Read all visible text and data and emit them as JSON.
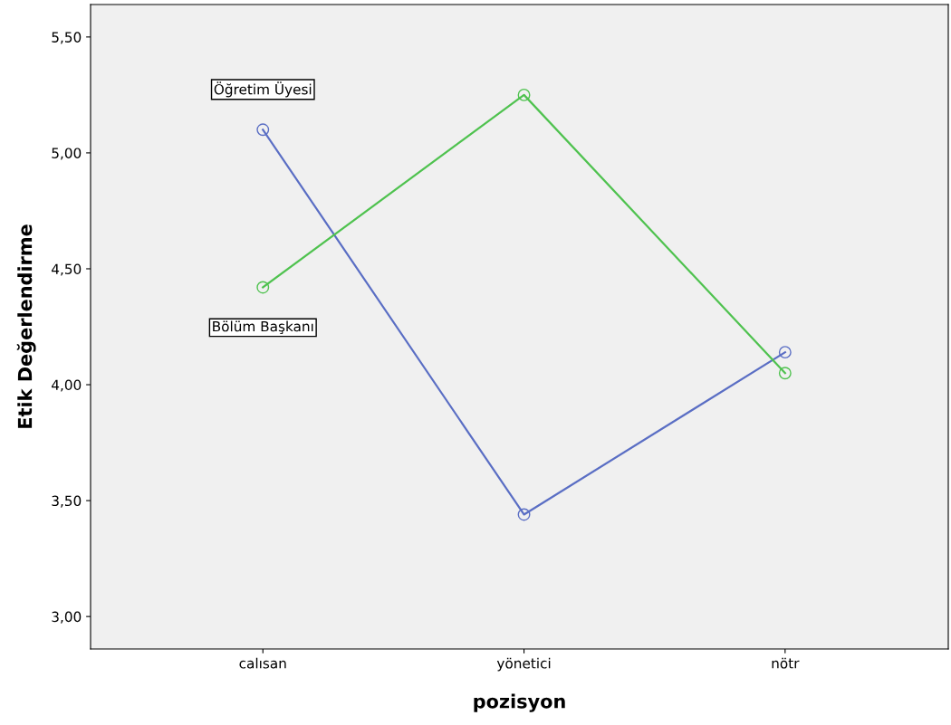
{
  "chart_data": {
    "type": "line",
    "xlabel": "pozisyon",
    "ylabel": "Etik Değerlendirme",
    "categories": [
      "calısan",
      "yönetici",
      "nötr"
    ],
    "series": [
      {
        "name": "Öğretim Üyesi",
        "color": "#5a6ec4",
        "values": [
          5.1,
          3.44,
          4.14
        ]
      },
      {
        "name": "Bölüm Başkanı",
        "color": "#4fc24f",
        "values": [
          4.42,
          5.25,
          4.05
        ]
      }
    ],
    "ylim": [
      2.86,
      5.64
    ],
    "yticks": [
      {
        "value": 3.0,
        "label": "3,00"
      },
      {
        "value": 3.5,
        "label": "3,50"
      },
      {
        "value": 4.0,
        "label": "4,00"
      },
      {
        "value": 4.5,
        "label": "4,50"
      },
      {
        "value": 5.0,
        "label": "5,00"
      },
      {
        "value": 5.5,
        "label": "5,50"
      }
    ],
    "marker": "circle",
    "line_style": "solid",
    "grid": false,
    "legend": false
  }
}
